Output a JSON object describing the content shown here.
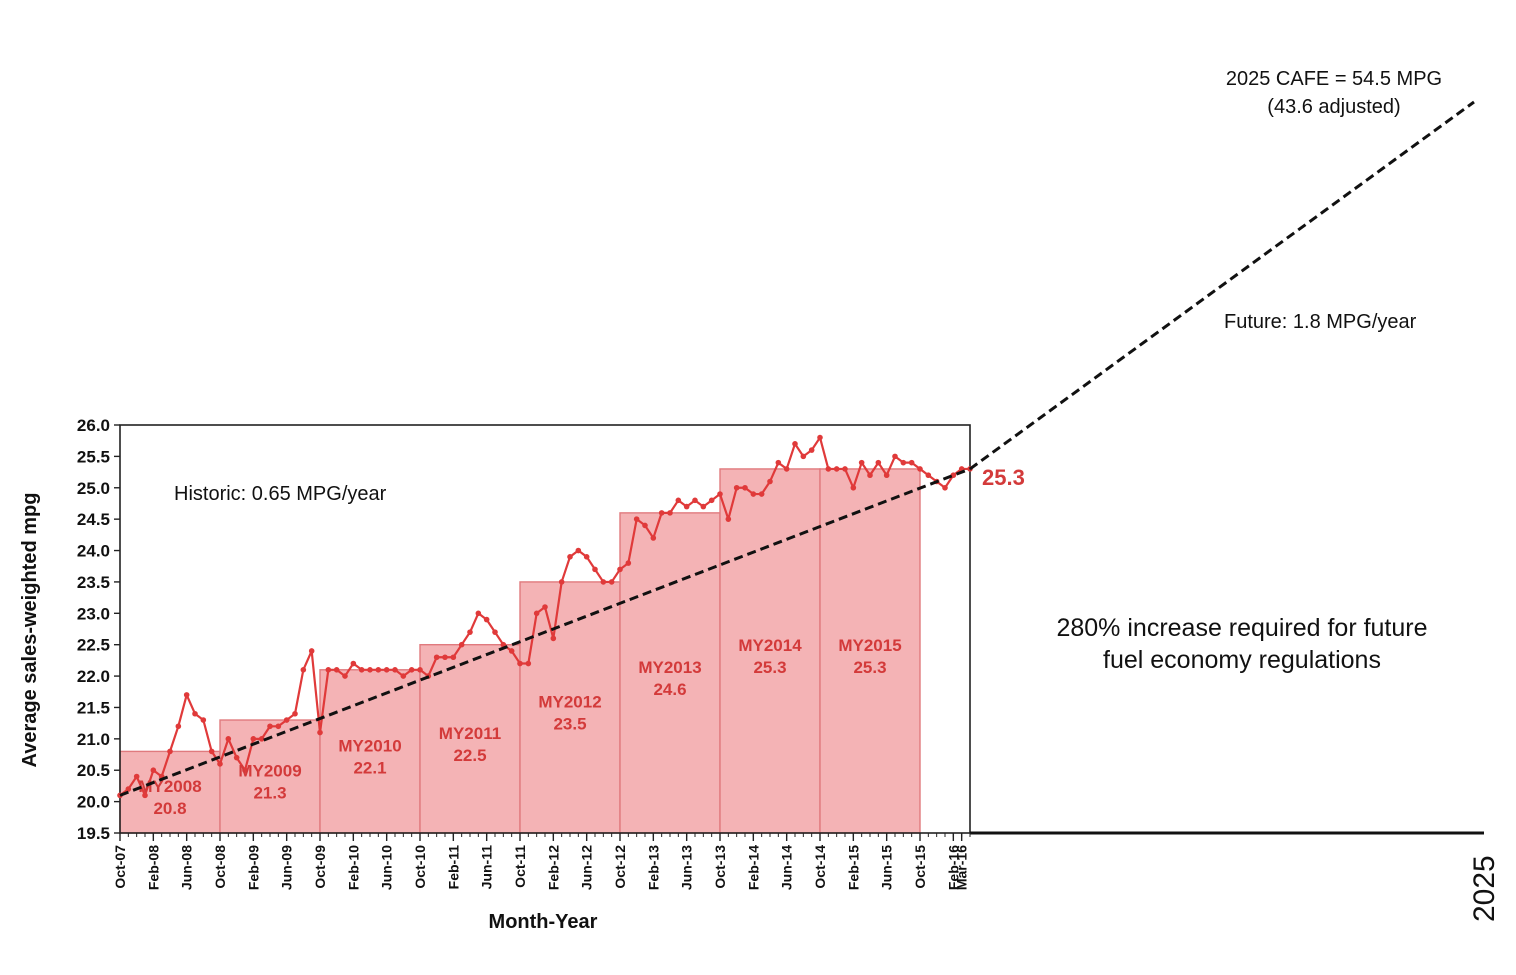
{
  "chart_data": {
    "type": "line",
    "xlabel": "Month-Year",
    "ylabel": "Average sales-weighted mpg",
    "ylim": [
      19.5,
      26.0
    ],
    "yticks": [
      "19.5",
      "20.0",
      "20.5",
      "21.0",
      "21.5",
      "22.0",
      "22.5",
      "23.0",
      "23.5",
      "24.0",
      "24.5",
      "25.0",
      "25.5",
      "26.0"
    ],
    "xticks": [
      "Oct-07",
      "Feb-08",
      "Jun-08",
      "Oct-08",
      "Feb-09",
      "Jun-09",
      "Oct-09",
      "Feb-10",
      "Jun-10",
      "Oct-10",
      "Feb-11",
      "Jun-11",
      "Oct-11",
      "Feb-12",
      "Jun-12",
      "Oct-12",
      "Feb-13",
      "Jun-13",
      "Oct-13",
      "Feb-14",
      "Jun-14",
      "Oct-14",
      "Feb-15",
      "Jun-15",
      "Oct-15",
      "Feb-16",
      "Mar-16"
    ],
    "xtick_month_index": [
      0,
      4,
      8,
      12,
      16,
      20,
      24,
      28,
      32,
      36,
      40,
      44,
      48,
      52,
      56,
      60,
      64,
      68,
      72,
      76,
      80,
      84,
      88,
      92,
      96,
      100,
      101
    ],
    "monthly_mpg": [
      20.1,
      20.2,
      20.4,
      20.1,
      20.5,
      20.4,
      20.8,
      21.2,
      21.7,
      21.4,
      21.3,
      20.8,
      20.6,
      21.0,
      20.7,
      20.5,
      21.0,
      21.0,
      21.2,
      21.2,
      21.3,
      21.4,
      22.1,
      22.4,
      21.1,
      22.1,
      22.1,
      22.0,
      22.2,
      22.1,
      22.1,
      22.1,
      22.1,
      22.1,
      22.0,
      22.1,
      22.1,
      22.0,
      22.3,
      22.3,
      22.3,
      22.5,
      22.7,
      23.0,
      22.9,
      22.7,
      22.5,
      22.4,
      22.2,
      22.2,
      23.0,
      23.1,
      22.6,
      23.5,
      23.9,
      24.0,
      23.9,
      23.7,
      23.5,
      23.5,
      23.7,
      23.8,
      24.5,
      24.4,
      24.2,
      24.6,
      24.6,
      24.8,
      24.7,
      24.8,
      24.7,
      24.8,
      24.9,
      24.5,
      25.0,
      25.0,
      24.9,
      24.9,
      25.1,
      25.4,
      25.3,
      25.7,
      25.5,
      25.6,
      25.8,
      25.3,
      25.3,
      25.3,
      25.0,
      25.4,
      25.2,
      25.4,
      25.2,
      25.5,
      25.4,
      25.4,
      25.3,
      25.2,
      25.1,
      25.0,
      25.2,
      25.3,
      25.3
    ],
    "model_years": [
      {
        "label": "MY2008",
        "value": "20.8",
        "mpg": 20.8,
        "start": 0,
        "end": 12
      },
      {
        "label": "MY2009",
        "value": "21.3",
        "mpg": 21.3,
        "start": 12,
        "end": 24
      },
      {
        "label": "MY2010",
        "value": "22.1",
        "mpg": 22.1,
        "start": 24,
        "end": 36
      },
      {
        "label": "MY2011",
        "value": "22.5",
        "mpg": 22.5,
        "start": 36,
        "end": 48
      },
      {
        "label": "MY2012",
        "value": "23.5",
        "mpg": 23.5,
        "start": 48,
        "end": 60
      },
      {
        "label": "MY2013",
        "value": "24.6",
        "mpg": 24.6,
        "start": 60,
        "end": 72
      },
      {
        "label": "MY2014",
        "value": "25.3",
        "mpg": 25.3,
        "start": 72,
        "end": 84
      },
      {
        "label": "MY2015",
        "value": "25.3",
        "mpg": 25.3,
        "start": 84,
        "end": 96
      }
    ],
    "trend_start": {
      "month_index": 0,
      "mpg": 20.1
    },
    "trend_end": {
      "month_index": 102,
      "mpg": 25.3
    },
    "current_value_label": "25.3",
    "future_year_label": "2025",
    "annotations": {
      "historic": "Historic: 0.65 MPG/year",
      "future": "Future: 1.8 MPG/year",
      "cafe_line1": "2025 CAFE = 54.5 MPG",
      "cafe_line2": "(43.6 adjusted)",
      "increase_line1": "280% increase required for future",
      "increase_line2": "fuel economy regulations"
    },
    "colors": {
      "series": "#e03a3a",
      "bar_fill": "#f4b3b5",
      "bar_edge": "#e07a7e",
      "value_text": "#d33a3a",
      "trend": "#111111"
    }
  }
}
